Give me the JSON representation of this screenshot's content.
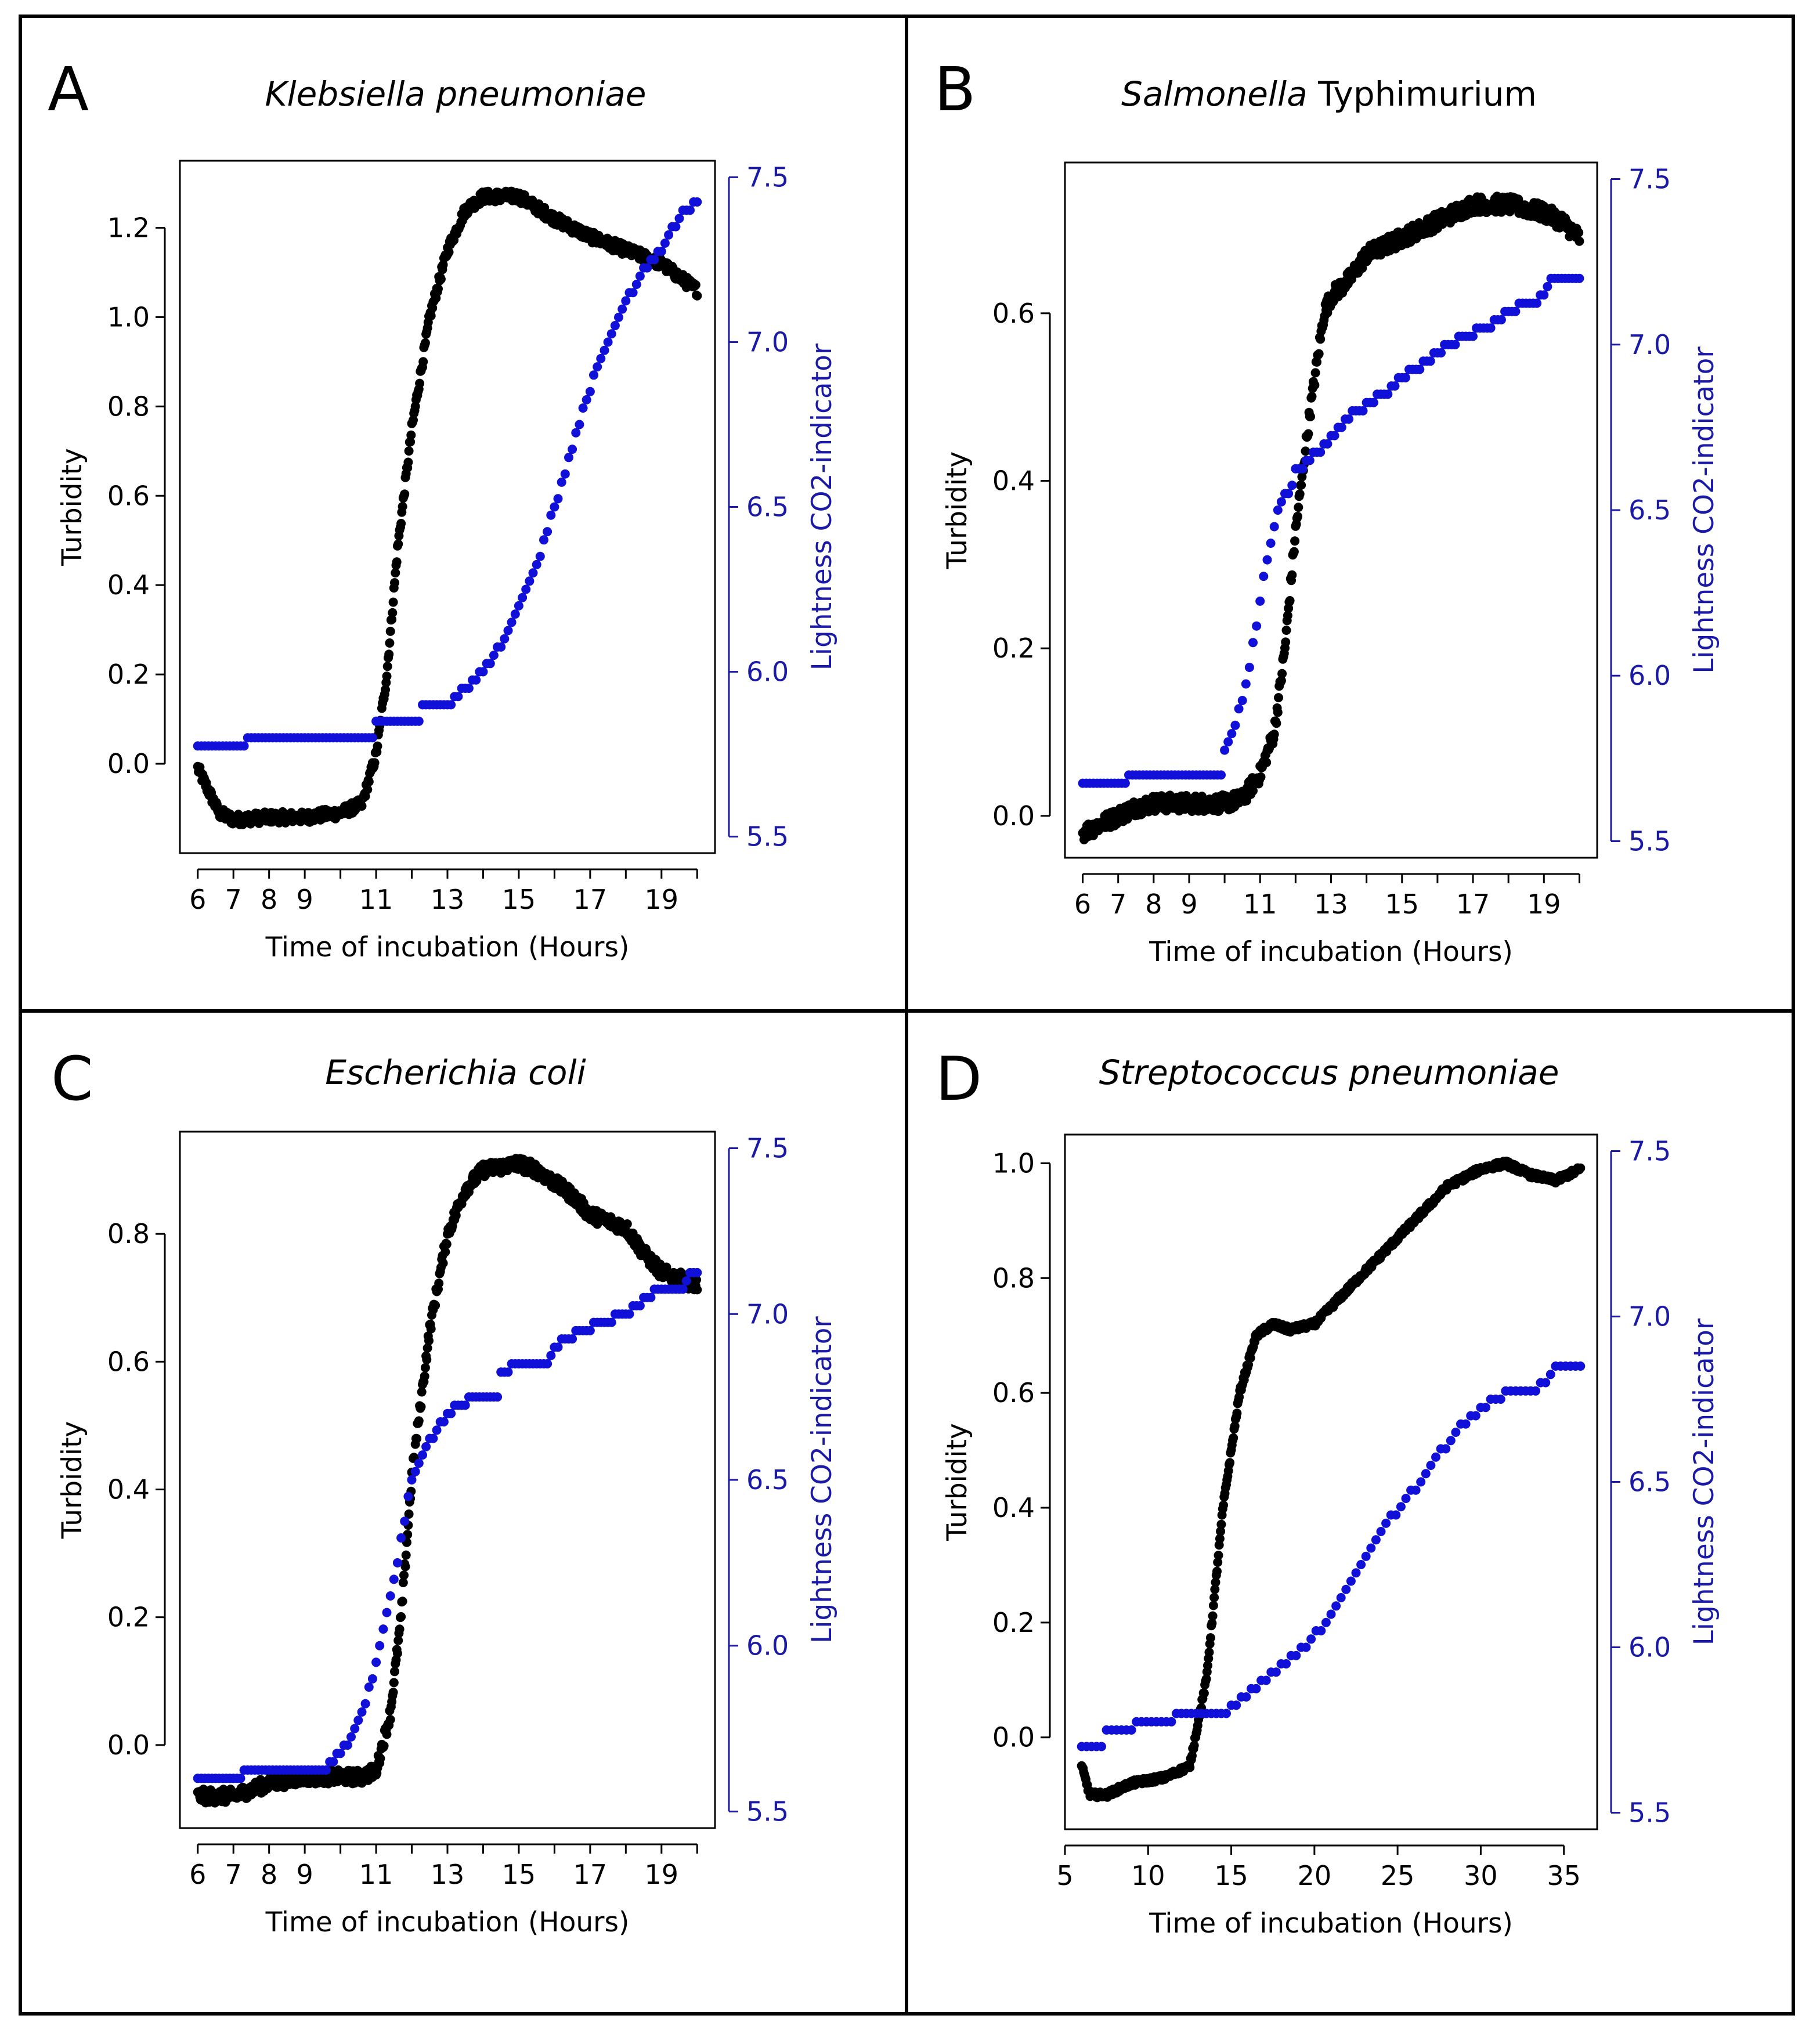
{
  "colors": {
    "turbidity": "#000000",
    "lightness": "#1010d8",
    "right_axis": "#1a1aa6",
    "frame": "#000000"
  },
  "chart_data": [
    {
      "panel": "A",
      "type": "scatter",
      "title_parts": [
        {
          "text": "Klebsiella pneumoniae",
          "italic": true
        }
      ],
      "xlabel": "Time of incubation (Hours)",
      "ylabel": "Turbidity",
      "y2label": "Lightness CO2-indicator",
      "xlim": [
        5.5,
        20.5
      ],
      "ylim": [
        -0.2,
        1.35
      ],
      "y2lim": [
        5.45,
        7.55
      ],
      "xticks": [
        6,
        7,
        8,
        9,
        10,
        11,
        12,
        13,
        14,
        15,
        16,
        17,
        18,
        19,
        20
      ],
      "xtick_labels": [
        "6",
        "7",
        "8",
        "9",
        "11",
        "13",
        "15",
        "17",
        "19"
      ],
      "xtick_label_values": [
        6,
        7,
        8,
        9,
        11,
        13,
        15,
        17,
        19
      ],
      "yticks": [
        0.0,
        0.2,
        0.4,
        0.6,
        0.8,
        1.0,
        1.2
      ],
      "ytick_labels": [
        "0.0",
        "0.2",
        "0.4",
        "0.6",
        "0.8",
        "1.0",
        "1.2"
      ],
      "y2ticks": [
        5.5,
        6.0,
        6.5,
        7.0,
        7.5
      ],
      "y2tick_labels": [
        "5.5",
        "6.0",
        "6.5",
        "7.0",
        "7.5"
      ],
      "series": [
        {
          "name": "Turbidity",
          "axis": "left",
          "style": "dense",
          "noise": 0.008,
          "points": [
            [
              6.0,
              -0.01
            ],
            [
              6.3,
              -0.06
            ],
            [
              6.6,
              -0.11
            ],
            [
              7.0,
              -0.125
            ],
            [
              8.0,
              -0.12
            ],
            [
              9.0,
              -0.12
            ],
            [
              10.0,
              -0.11
            ],
            [
              10.6,
              -0.09
            ],
            [
              11.0,
              0.02
            ],
            [
              11.3,
              0.2
            ],
            [
              11.6,
              0.48
            ],
            [
              12.0,
              0.75
            ],
            [
              12.5,
              1.0
            ],
            [
              13.0,
              1.15
            ],
            [
              13.5,
              1.24
            ],
            [
              14.0,
              1.27
            ],
            [
              15.0,
              1.27
            ],
            [
              16.0,
              1.22
            ],
            [
              17.0,
              1.18
            ],
            [
              18.0,
              1.15
            ],
            [
              19.0,
              1.12
            ],
            [
              20.0,
              1.06
            ]
          ]
        },
        {
          "name": "Lightness CO2-indicator",
          "axis": "right",
          "style": "step",
          "interval": 0.1,
          "points": [
            [
              6.0,
              5.77
            ],
            [
              7.3,
              5.77
            ],
            [
              7.4,
              5.81
            ],
            [
              10.9,
              5.81
            ],
            [
              11.0,
              5.86
            ],
            [
              12.2,
              5.86
            ],
            [
              12.3,
              5.9
            ],
            [
              13.0,
              5.9
            ],
            [
              13.4,
              5.94
            ],
            [
              14.0,
              6.0
            ],
            [
              14.5,
              6.08
            ],
            [
              15.0,
              6.2
            ],
            [
              15.5,
              6.32
            ],
            [
              16.0,
              6.5
            ],
            [
              16.5,
              6.68
            ],
            [
              17.0,
              6.86
            ],
            [
              17.5,
              7.0
            ],
            [
              18.0,
              7.12
            ],
            [
              18.5,
              7.22
            ],
            [
              19.0,
              7.28
            ],
            [
              19.5,
              7.38
            ],
            [
              20.0,
              7.43
            ]
          ]
        }
      ]
    },
    {
      "panel": "B",
      "type": "scatter",
      "title_parts": [
        {
          "text": "Salmonella",
          "italic": true
        },
        {
          "text": " Typhimurium",
          "italic": false
        }
      ],
      "xlabel": "Time of incubation (Hours)",
      "ylabel": "Turbidity",
      "y2label": "Lightness CO2-indicator",
      "xlim": [
        5.5,
        20.5
      ],
      "ylim": [
        -0.05,
        0.78
      ],
      "y2lim": [
        5.45,
        7.55
      ],
      "xticks": [
        6,
        7,
        8,
        9,
        10,
        11,
        12,
        13,
        14,
        15,
        16,
        17,
        18,
        19,
        20
      ],
      "xtick_labels": [
        "6",
        "7",
        "8",
        "9",
        "11",
        "13",
        "15",
        "17",
        "19"
      ],
      "xtick_label_values": [
        6,
        7,
        8,
        9,
        11,
        13,
        15,
        17,
        19
      ],
      "yticks": [
        0.0,
        0.2,
        0.4,
        0.6
      ],
      "ytick_labels": [
        "0.0",
        "0.2",
        "0.4",
        "0.6"
      ],
      "y2ticks": [
        5.5,
        6.0,
        6.5,
        7.0,
        7.5
      ],
      "y2tick_labels": [
        "5.5",
        "6.0",
        "6.5",
        "7.0",
        "7.5"
      ],
      "series": [
        {
          "name": "Turbidity",
          "axis": "left",
          "style": "dense",
          "noise": 0.012,
          "points": [
            [
              6.0,
              -0.02
            ],
            [
              6.5,
              -0.01
            ],
            [
              7.0,
              0.0
            ],
            [
              7.5,
              0.01
            ],
            [
              8.0,
              0.015
            ],
            [
              9.0,
              0.015
            ],
            [
              10.0,
              0.015
            ],
            [
              10.5,
              0.02
            ],
            [
              11.0,
              0.05
            ],
            [
              11.4,
              0.1
            ],
            [
              11.7,
              0.2
            ],
            [
              12.0,
              0.34
            ],
            [
              12.4,
              0.48
            ],
            [
              12.8,
              0.6
            ],
            [
              13.0,
              0.62
            ],
            [
              13.5,
              0.64
            ],
            [
              14.0,
              0.67
            ],
            [
              15.0,
              0.69
            ],
            [
              16.0,
              0.71
            ],
            [
              17.0,
              0.73
            ],
            [
              18.0,
              0.73
            ],
            [
              19.0,
              0.72
            ],
            [
              19.5,
              0.71
            ],
            [
              20.0,
              0.69
            ]
          ]
        },
        {
          "name": "Lightness CO2-indicator",
          "axis": "right",
          "style": "step",
          "interval": 0.1,
          "points": [
            [
              6.0,
              5.67
            ],
            [
              7.2,
              5.67
            ],
            [
              7.3,
              5.71
            ],
            [
              9.9,
              5.71
            ],
            [
              10.0,
              5.78
            ],
            [
              10.3,
              5.85
            ],
            [
              10.6,
              5.98
            ],
            [
              10.9,
              6.15
            ],
            [
              11.2,
              6.36
            ],
            [
              11.5,
              6.5
            ],
            [
              11.9,
              6.58
            ],
            [
              12.0,
              6.62
            ],
            [
              12.7,
              6.68
            ],
            [
              13.0,
              6.72
            ],
            [
              13.5,
              6.78
            ],
            [
              14.0,
              6.82
            ],
            [
              14.6,
              6.86
            ],
            [
              15.0,
              6.9
            ],
            [
              15.6,
              6.94
            ],
            [
              16.0,
              6.98
            ],
            [
              16.7,
              7.02
            ],
            [
              17.5,
              7.06
            ],
            [
              18.0,
              7.1
            ],
            [
              18.9,
              7.14
            ],
            [
              19.2,
              7.2
            ],
            [
              20.0,
              7.2
            ]
          ]
        }
      ]
    },
    {
      "panel": "C",
      "type": "scatter",
      "title_parts": [
        {
          "text": "Escherichia coli",
          "italic": true
        }
      ],
      "xlabel": "Time of incubation (Hours)",
      "ylabel": "Turbidity",
      "y2label": "Lightness CO2-indicator",
      "xlim": [
        5.5,
        20.5
      ],
      "ylim": [
        -0.13,
        0.96
      ],
      "y2lim": [
        5.45,
        7.55
      ],
      "xticks": [
        6,
        7,
        8,
        9,
        10,
        11,
        12,
        13,
        14,
        15,
        16,
        17,
        18,
        19,
        20
      ],
      "xtick_labels": [
        "6",
        "7",
        "8",
        "9",
        "11",
        "13",
        "15",
        "17",
        "19"
      ],
      "xtick_label_values": [
        6,
        7,
        8,
        9,
        11,
        13,
        15,
        17,
        19
      ],
      "yticks": [
        0.0,
        0.2,
        0.4,
        0.6,
        0.8
      ],
      "ytick_labels": [
        "0.0",
        "0.2",
        "0.4",
        "0.6",
        "0.8"
      ],
      "y2ticks": [
        5.5,
        6.0,
        6.5,
        7.0,
        7.5
      ],
      "y2tick_labels": [
        "5.5",
        "6.0",
        "6.5",
        "7.0",
        "7.5"
      ],
      "series": [
        {
          "name": "Turbidity",
          "axis": "left",
          "style": "dense",
          "noise": 0.01,
          "points": [
            [
              6.0,
              -0.08
            ],
            [
              7.0,
              -0.08
            ],
            [
              8.0,
              -0.06
            ],
            [
              9.0,
              -0.05
            ],
            [
              10.0,
              -0.05
            ],
            [
              10.6,
              -0.05
            ],
            [
              11.0,
              -0.04
            ],
            [
              11.4,
              0.05
            ],
            [
              11.7,
              0.2
            ],
            [
              12.0,
              0.42
            ],
            [
              12.5,
              0.65
            ],
            [
              13.0,
              0.8
            ],
            [
              13.5,
              0.87
            ],
            [
              14.0,
              0.9
            ],
            [
              15.0,
              0.91
            ],
            [
              15.5,
              0.9
            ],
            [
              16.0,
              0.88
            ],
            [
              16.5,
              0.86
            ],
            [
              17.0,
              0.83
            ],
            [
              18.0,
              0.81
            ],
            [
              18.5,
              0.77
            ],
            [
              19.0,
              0.74
            ],
            [
              20.0,
              0.72
            ]
          ]
        },
        {
          "name": "Lightness CO2-indicator",
          "axis": "right",
          "style": "step",
          "interval": 0.1,
          "points": [
            [
              6.0,
              5.6
            ],
            [
              7.2,
              5.6
            ],
            [
              7.3,
              5.63
            ],
            [
              9.6,
              5.63
            ],
            [
              9.8,
              5.66
            ],
            [
              10.2,
              5.7
            ],
            [
              10.6,
              5.8
            ],
            [
              11.0,
              5.95
            ],
            [
              11.5,
              6.2
            ],
            [
              12.0,
              6.5
            ],
            [
              12.5,
              6.62
            ],
            [
              13.0,
              6.7
            ],
            [
              13.2,
              6.72
            ],
            [
              13.9,
              6.76
            ],
            [
              14.4,
              6.76
            ],
            [
              14.5,
              6.82
            ],
            [
              15.0,
              6.86
            ],
            [
              15.8,
              6.86
            ],
            [
              16.0,
              6.9
            ],
            [
              16.6,
              6.94
            ],
            [
              17.4,
              6.98
            ],
            [
              18.0,
              7.0
            ],
            [
              18.5,
              7.04
            ],
            [
              19.0,
              7.08
            ],
            [
              19.6,
              7.08
            ],
            [
              19.8,
              7.12
            ],
            [
              20.0,
              7.12
            ]
          ]
        }
      ]
    },
    {
      "panel": "D",
      "type": "scatter",
      "title_parts": [
        {
          "text": "Streptococcus pneumoniae",
          "italic": true
        }
      ],
      "xlabel": "Time of incubation (Hours)",
      "ylabel": "Turbidity",
      "y2label": "Lightness CO2-indicator",
      "xlim": [
        5,
        37
      ],
      "ylim": [
        -0.16,
        1.05
      ],
      "y2lim": [
        5.45,
        7.55
      ],
      "xticks": [
        5,
        10,
        15,
        20,
        25,
        30,
        35
      ],
      "xtick_labels": [
        "5",
        "10",
        "15",
        "20",
        "25",
        "30",
        "35"
      ],
      "xtick_label_values": [
        5,
        10,
        15,
        20,
        25,
        30,
        35
      ],
      "yticks": [
        0.0,
        0.2,
        0.4,
        0.6,
        0.8,
        1.0
      ],
      "ytick_labels": [
        "0.0",
        "0.2",
        "0.4",
        "0.6",
        "0.8",
        "1.0"
      ],
      "y2ticks": [
        5.5,
        6.0,
        6.5,
        7.0,
        7.5
      ],
      "y2tick_labels": [
        "5.5",
        "6.0",
        "6.5",
        "7.0",
        "7.5"
      ],
      "series": [
        {
          "name": "Turbidity",
          "axis": "left",
          "style": "dense",
          "noise": 0.004,
          "points": [
            [
              6.0,
              -0.05
            ],
            [
              6.5,
              -0.1
            ],
            [
              7.5,
              -0.1
            ],
            [
              9.0,
              -0.08
            ],
            [
              11.0,
              -0.07
            ],
            [
              12.5,
              -0.05
            ],
            [
              13.5,
              0.1
            ],
            [
              14.5,
              0.4
            ],
            [
              15.5,
              0.6
            ],
            [
              16.5,
              0.7
            ],
            [
              17.5,
              0.72
            ],
            [
              18.5,
              0.71
            ],
            [
              20.0,
              0.72
            ],
            [
              22.0,
              0.78
            ],
            [
              24.0,
              0.84
            ],
            [
              26.0,
              0.9
            ],
            [
              28.0,
              0.96
            ],
            [
              30.0,
              0.99
            ],
            [
              31.5,
              1.0
            ],
            [
              33.0,
              0.98
            ],
            [
              34.5,
              0.97
            ],
            [
              36.0,
              0.99
            ]
          ]
        },
        {
          "name": "Lightness CO2-indicator",
          "axis": "right",
          "style": "step",
          "interval": 0.3,
          "points": [
            [
              6.0,
              5.71
            ],
            [
              7.2,
              5.71
            ],
            [
              7.5,
              5.74
            ],
            [
              9.0,
              5.76
            ],
            [
              10.5,
              5.78
            ],
            [
              13.0,
              5.8
            ],
            [
              14.5,
              5.8
            ],
            [
              15.5,
              5.84
            ],
            [
              17.0,
              5.9
            ],
            [
              18.0,
              5.94
            ],
            [
              19.0,
              5.98
            ],
            [
              20.5,
              6.06
            ],
            [
              22.0,
              6.18
            ],
            [
              23.5,
              6.3
            ],
            [
              25.0,
              6.42
            ],
            [
              26.5,
              6.5
            ],
            [
              28.0,
              6.62
            ],
            [
              29.5,
              6.7
            ],
            [
              31.0,
              6.76
            ],
            [
              33.0,
              6.78
            ],
            [
              34.0,
              6.8
            ],
            [
              34.5,
              6.84
            ],
            [
              36.0,
              6.84
            ]
          ]
        }
      ]
    }
  ]
}
